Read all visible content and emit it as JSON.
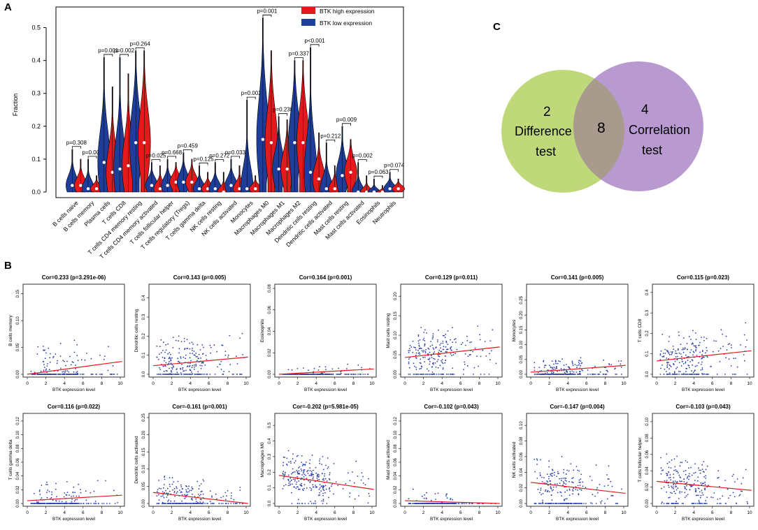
{
  "panels": {
    "a": "A",
    "b": "B",
    "c": "C"
  },
  "colors": {
    "high": "#e31a1c",
    "low": "#1f3e9a",
    "scatter_point": "#2b3fa8",
    "fit_line": "#e31a1c",
    "venn_left": "#bfd97a",
    "venn_right": "#b89ad0"
  },
  "chart_data": [
    {
      "type": "violin",
      "ylabel": "Fraction",
      "ylim": [
        0,
        0.55
      ],
      "yticks": [
        "0.0",
        "0.1",
        "0.2",
        "0.3",
        "0.4",
        "0.5"
      ],
      "legend": [
        "BTK high expression",
        "BTK low expression"
      ],
      "legend_position": "top-right",
      "categories": [
        "B cells naive",
        "B cells memory",
        "Plasma cells",
        "T cells CD8",
        "T cells CD4 memory resting",
        "T cells CD4 memory activated",
        "T cells follicular helper",
        "T cells regulatory (Tregs)",
        "T cells gamma delta",
        "NK cells resting",
        "NK cells activated",
        "Monocytes",
        "Macrophages M0",
        "Macrophages M1",
        "Macrophages M2",
        "Dendritic cells resting",
        "Dendritic cells activated",
        "Mast cells resting",
        "Mast cells activated",
        "Eosinophils",
        "Neutrophils"
      ],
      "pvalues": [
        "p=0.308",
        "p=0.001",
        "p=0.001",
        "p=0.002",
        "p=0.264",
        "p=0.025",
        "p=0.668",
        "p=0.459",
        "p=0.125",
        "p=0.272",
        "p=0.033",
        "p=0.002",
        "p=0.001",
        "p=0.238",
        "p=0.337",
        "p<0.001",
        "p=0.212",
        "p=0.009",
        "p=0.002",
        "p=0.063",
        "p=0.074"
      ],
      "series": [
        {
          "name": "BTK low expression",
          "median": [
            0.02,
            0.01,
            0.09,
            0.07,
            0.15,
            0.02,
            0.02,
            0.03,
            0.01,
            0.01,
            0.02,
            0.01,
            0.16,
            0.07,
            0.15,
            0.06,
            0.01,
            0.05,
            0.0,
            0.0,
            0.01
          ],
          "max": [
            0.13,
            0.1,
            0.41,
            0.41,
            0.43,
            0.09,
            0.1,
            0.12,
            0.08,
            0.09,
            0.1,
            0.28,
            0.53,
            0.23,
            0.4,
            0.44,
            0.15,
            0.2,
            0.09,
            0.04,
            0.06
          ]
        },
        {
          "name": "BTK high expression",
          "median": [
            0.02,
            0.01,
            0.06,
            0.08,
            0.15,
            0.01,
            0.03,
            0.03,
            0.01,
            0.0,
            0.01,
            0.01,
            0.15,
            0.07,
            0.15,
            0.04,
            0.01,
            0.06,
            0.0,
            0.0,
            0.01
          ],
          "max": [
            0.1,
            0.05,
            0.32,
            0.36,
            0.43,
            0.08,
            0.09,
            0.1,
            0.06,
            0.06,
            0.08,
            0.05,
            0.43,
            0.22,
            0.4,
            0.18,
            0.08,
            0.16,
            0.05,
            0.02,
            0.04
          ]
        }
      ]
    },
    {
      "type": "venn",
      "sets": [
        {
          "label": "Difference test",
          "count_only": "2"
        },
        {
          "label": "Correlation test",
          "count_only": "4"
        }
      ],
      "intersection": "8",
      "text": {
        "left_count": "2",
        "left_line1": "Difference",
        "left_line2": "test",
        "intersection": "8",
        "right_count": "4",
        "right_line1": "Correlation",
        "right_line2": "test"
      }
    },
    {
      "type": "scatter",
      "xlabel": "BTK expression level",
      "xlim": [
        0,
        10
      ],
      "xticks": [
        "0",
        "2",
        "4",
        "6",
        "8",
        "10"
      ],
      "plots": [
        {
          "title": "Cor=0.233 (p=3.291e-06)",
          "ylabel": "B cells memory",
          "ylim": [
            0,
            0.16
          ],
          "yticks": [
            "0.00",
            "0.05",
            "0.10",
            "0.15"
          ],
          "yvals": [
            0,
            0.05,
            0.1,
            0.15
          ],
          "fit": [
            0.0,
            0.024
          ],
          "seed": 11,
          "ymax": 0.17,
          "zero_frac": 0.6
        },
        {
          "title": "Cor=0.143 (p=0.005)",
          "ylabel": "Dendritic cells resting",
          "ylim": [
            0,
            0.45
          ],
          "yticks": [
            "0.0",
            "0.1",
            "0.2",
            "0.3",
            "0.4"
          ],
          "yvals": [
            0,
            0.1,
            0.2,
            0.3,
            0.4
          ],
          "fit": [
            0.045,
            0.09
          ],
          "seed": 12,
          "ymax": 0.44,
          "zero_frac": 0.2
        },
        {
          "title": "Cor=0.164 (p=0.001)",
          "ylabel": "Eosinophils",
          "ylim": [
            0,
            0.08
          ],
          "yticks": [
            "0.00",
            "0.02",
            "0.04",
            "0.06",
            "0.08"
          ],
          "yvals": [
            0,
            0.02,
            0.04,
            0.06,
            0.08
          ],
          "fit": [
            0.0,
            0.005
          ],
          "seed": 13,
          "ymax": 0.02,
          "zero_frac": 0.8
        },
        {
          "title": "Cor=0.129 (p=0.011)",
          "ylabel": "Mast cells resting",
          "ylim": [
            0,
            0.22
          ],
          "yticks": [
            "0.00",
            "0.05",
            "0.10",
            "0.15",
            "0.20"
          ],
          "yvals": [
            0,
            0.05,
            0.1,
            0.15,
            0.2
          ],
          "fit": [
            0.043,
            0.07
          ],
          "seed": 14,
          "ymax": 0.19,
          "zero_frac": 0.15
        },
        {
          "title": "Cor=0.141 (p=0.005)",
          "ylabel": "Monocytes",
          "ylim": [
            0,
            0.29
          ],
          "yticks": [
            "0.00",
            "0.05",
            "0.10",
            "0.15",
            "0.20",
            "0.25"
          ],
          "yvals": [
            0,
            0.05,
            0.1,
            0.15,
            0.2,
            0.25
          ],
          "fit": [
            0.007,
            0.03
          ],
          "seed": 15,
          "ymax": 0.12,
          "zero_frac": 0.45
        },
        {
          "title": "Cor=0.115 (p=0.023)",
          "ylabel": "T cells CD8",
          "ylim": [
            0,
            0.42
          ],
          "yticks": [
            "0.0",
            "0.1",
            "0.2",
            "0.3",
            "0.4"
          ],
          "yvals": [
            0,
            0.1,
            0.2,
            0.3,
            0.4
          ],
          "fit": [
            0.065,
            0.115
          ],
          "seed": 16,
          "ymax": 0.4,
          "zero_frac": 0.15
        },
        {
          "title": "Cor=0.116 (p=0.022)",
          "ylabel": "T cells gamma delta",
          "ylim": [
            0,
            0.125
          ],
          "yticks": [
            "0.00",
            "0.02",
            "0.04",
            "0.06",
            "0.08",
            "0.10",
            "0.12"
          ],
          "yvals": [
            0,
            0.02,
            0.04,
            0.06,
            0.08,
            0.1,
            0.12
          ],
          "fit": [
            0.004,
            0.012
          ],
          "seed": 17,
          "ymax": 0.07,
          "zero_frac": 0.65
        },
        {
          "title": "Cor=-0.161 (p=0.001)",
          "ylabel": "Dendritic cells activated",
          "ylim": [
            0,
            0.25
          ],
          "yticks": [
            "0.00",
            "0.05",
            "0.10",
            "0.15",
            "0.20",
            "0.25"
          ],
          "yvals": [
            0,
            0.05,
            0.1,
            0.15,
            0.2,
            0.25
          ],
          "fit": [
            0.032,
            0.0
          ],
          "seed": 18,
          "ymax": 0.15,
          "zero_frac": 0.45
        },
        {
          "title": "Cor=-0.202 (p=5.981e-05)",
          "ylabel": "Macrophages M0",
          "ylim": [
            0,
            0.55
          ],
          "yticks": [
            "0.0",
            "0.1",
            "0.2",
            "0.3",
            "0.4",
            "0.5"
          ],
          "yvals": [
            0,
            0.1,
            0.2,
            0.3,
            0.4,
            0.5
          ],
          "fit": [
            0.18,
            0.09
          ],
          "seed": 19,
          "ymax": 0.5,
          "zero_frac": 0.05
        },
        {
          "title": "Cor=-0.102 (p=0.043)",
          "ylabel": "Mast cells activated",
          "ylim": [
            0,
            0.125
          ],
          "yticks": [
            "0.00",
            "0.02",
            "0.04",
            "0.06",
            "0.08",
            "0.10",
            "0.12"
          ],
          "yvals": [
            0,
            0.02,
            0.04,
            0.06,
            0.08,
            0.1,
            0.12
          ],
          "fit": [
            0.004,
            0.0
          ],
          "seed": 20,
          "ymax": 0.06,
          "zero_frac": 0.85
        },
        {
          "title": "Cor=-0.147 (p=0.004)",
          "ylabel": "NK cells activated",
          "ylim": [
            0,
            0.11
          ],
          "yticks": [
            "0.00",
            "0.02",
            "0.04",
            "0.06",
            "0.08",
            "0.10"
          ],
          "yvals": [
            0,
            0.02,
            0.04,
            0.06,
            0.08,
            0.1
          ],
          "fit": [
            0.027,
            0.013
          ],
          "seed": 21,
          "ymax": 0.1,
          "zero_frac": 0.35
        },
        {
          "title": "Cor=-0.103 (p=0.043)",
          "ylabel": "T cells follicular helper",
          "ylim": [
            0,
            0.105
          ],
          "yticks": [
            "0.00",
            "0.02",
            "0.04",
            "0.06",
            "0.08",
            "0.10"
          ],
          "yvals": [
            0,
            0.02,
            0.04,
            0.06,
            0.08,
            0.1
          ],
          "fit": [
            0.027,
            0.016
          ],
          "seed": 22,
          "ymax": 0.1,
          "zero_frac": 0.2
        }
      ]
    }
  ]
}
